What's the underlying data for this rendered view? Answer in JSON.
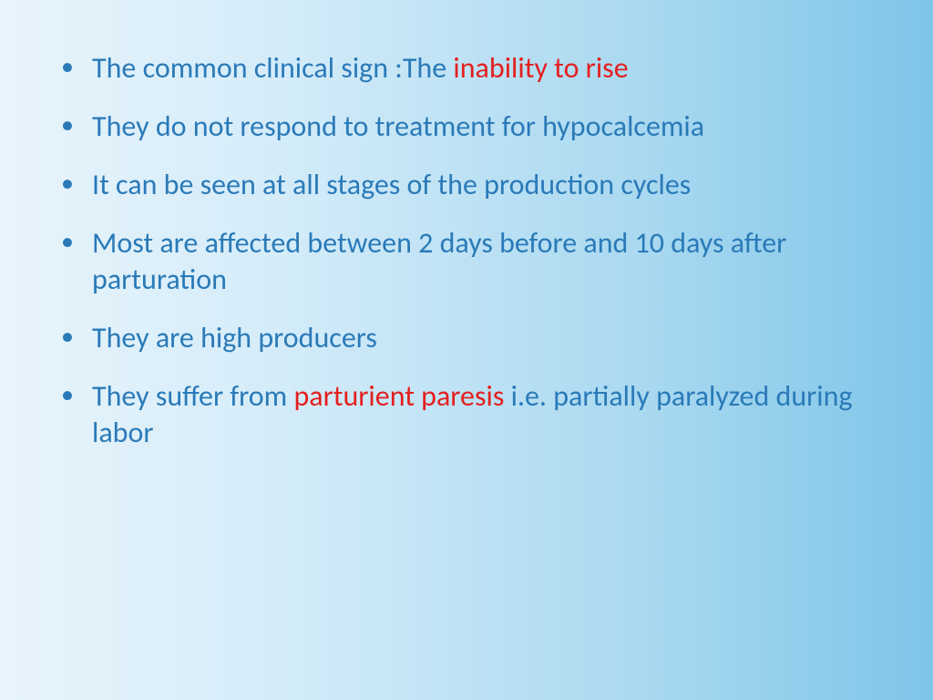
{
  "slide": {
    "bullets": [
      {
        "segments": [
          {
            "text": "The common clinical sign :The ",
            "highlight": false
          },
          {
            "text": "inability to rise",
            "highlight": true
          }
        ]
      },
      {
        "segments": [
          {
            "text": "They do not respond to treatment for hypocalcemia",
            "highlight": false
          }
        ]
      },
      {
        "segments": [
          {
            "text": "It can be seen at all stages of the production cycles",
            "highlight": false
          }
        ]
      },
      {
        "segments": [
          {
            "text": "Most are affected between 2 days before and 10 days after parturation",
            "highlight": false
          }
        ]
      },
      {
        "segments": [
          {
            "text": "They are high producers",
            "highlight": false
          }
        ]
      },
      {
        "segments": [
          {
            "text": "They suffer from ",
            "highlight": false
          },
          {
            "text": "parturient paresis ",
            "highlight": true
          },
          {
            "text": "i.e. partially paralyzed during labor",
            "highlight": false
          }
        ]
      }
    ]
  },
  "style": {
    "background_gradient_start": "#e8f4fb",
    "background_gradient_end": "#7ec5e8",
    "text_color": "#2a7ab8",
    "highlight_color": "#e32020",
    "font_size_pt": 24,
    "font_family": "Calibri",
    "bullet_char": "•"
  }
}
